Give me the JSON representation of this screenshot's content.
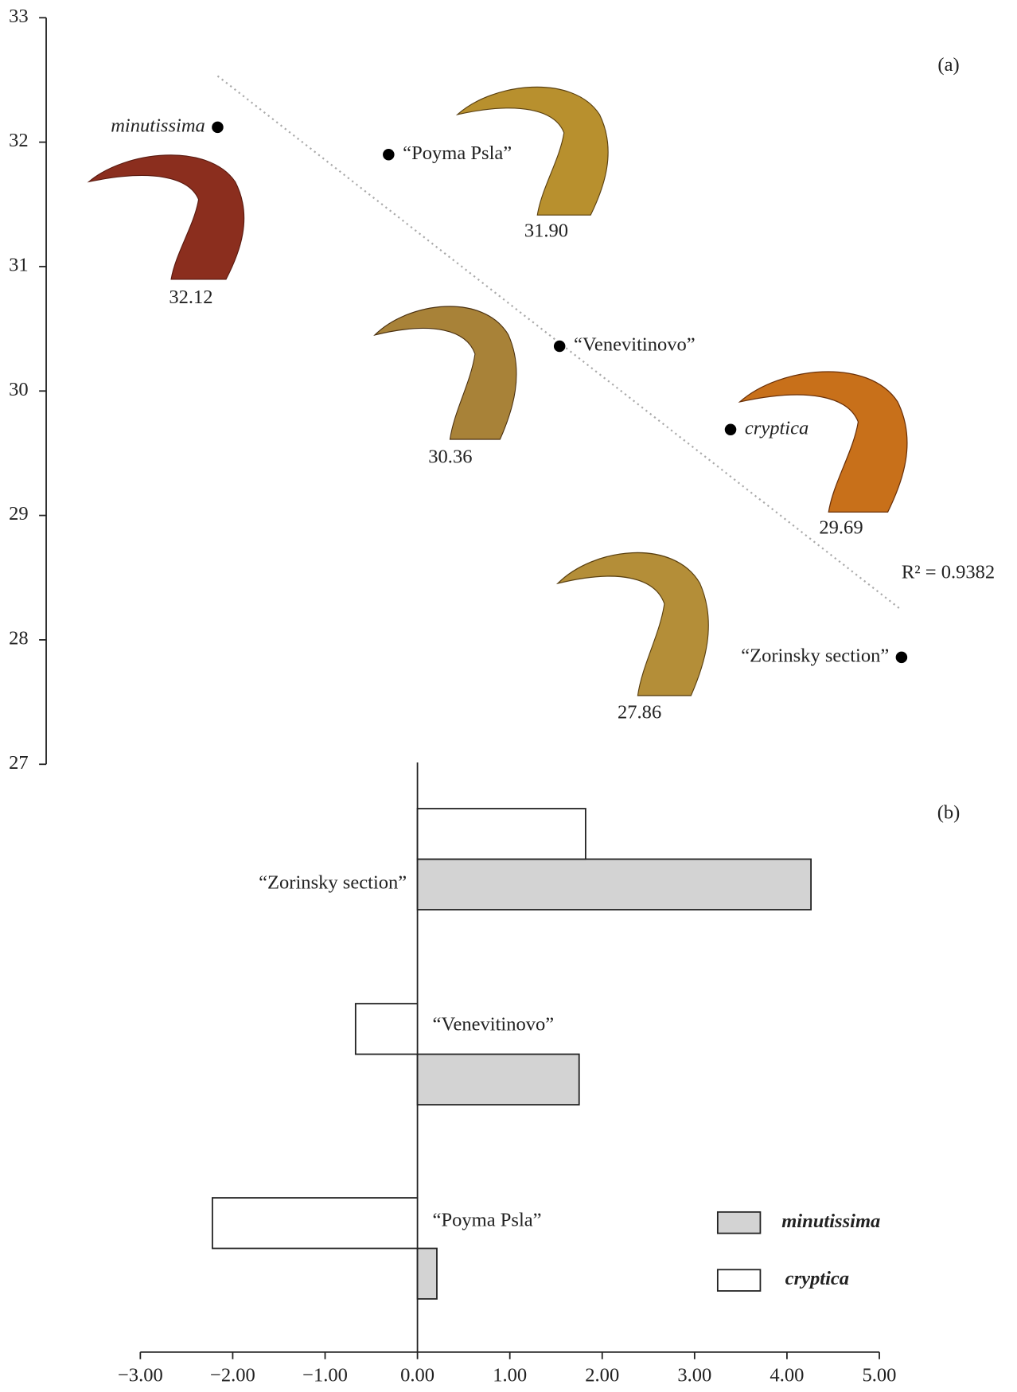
{
  "chart_data": [
    {
      "type": "scatter",
      "label": "(a)",
      "categories": [
        "minutissima",
        "“Poyma Psla”",
        "“Venevitinovo”",
        "cryptica",
        "“Zorinsky section”"
      ],
      "values": [
        32.12,
        31.9,
        30.36,
        29.69,
        27.86
      ],
      "value_labels": [
        "32.12",
        "31.90",
        "30.36",
        "29.69",
        "27.86"
      ],
      "color": "#000000",
      "ylim": [
        27,
        33
      ],
      "yticks": [
        27,
        28,
        29,
        30,
        31,
        32,
        33
      ],
      "trendline": true,
      "annotation": "R² = 0.9382"
    },
    {
      "type": "bar",
      "orientation": "horizontal",
      "label": "(b)",
      "categories": [
        "“Zorinsky section”",
        "“Venevitinovo”",
        "“Poyma Psla”"
      ],
      "series": [
        {
          "name": "minutissima",
          "color": "#d3d3d3",
          "values": [
            4.26,
            1.75,
            0.21
          ]
        },
        {
          "name": "cryptica",
          "color": "#ffffff",
          "values": [
            1.82,
            -0.67,
            -2.22
          ]
        }
      ],
      "xlim": [
        -3,
        5
      ],
      "xticks": [
        {
          "value": -3,
          "label": "−3.00"
        },
        {
          "value": -2,
          "label": "−2.00"
        },
        {
          "value": -1,
          "label": "−1.00"
        },
        {
          "value": 0,
          "label": "0.00"
        },
        {
          "value": 1,
          "label": "1.00"
        },
        {
          "value": 2,
          "label": "2.00"
        },
        {
          "value": 3,
          "label": "3.00"
        },
        {
          "value": 4,
          "label": "4.00"
        },
        {
          "value": 5,
          "label": "5.00"
        }
      ]
    }
  ]
}
